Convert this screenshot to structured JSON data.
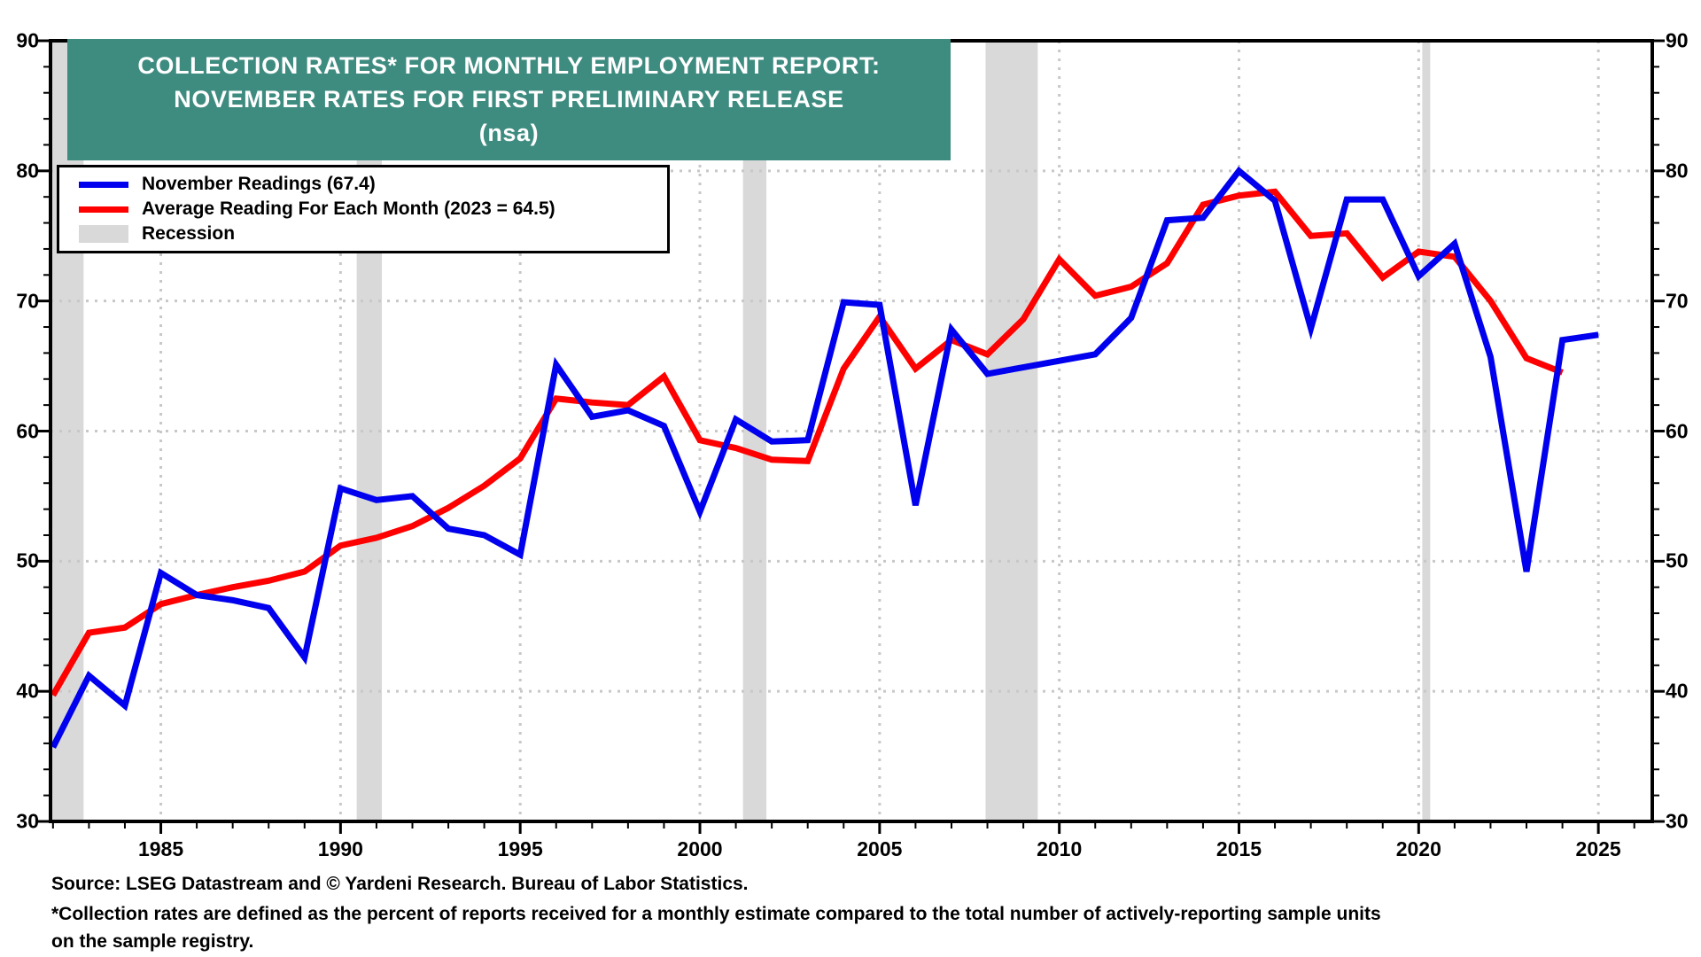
{
  "title": {
    "line1": "COLLECTION RATES* FOR MONTHLY EMPLOYMENT REPORT:",
    "line2": "NOVEMBER RATES FOR FIRST PRELIMINARY RELEASE",
    "line3": "(nsa)"
  },
  "legend": {
    "items": [
      {
        "label": "November Readings (67.4)",
        "swatch": "line",
        "color": "#0000EE"
      },
      {
        "label": "Average Reading For Each Month (2023 = 64.5)",
        "swatch": "line",
        "color": "#FF0000"
      },
      {
        "label": "Recession",
        "swatch": "box",
        "color": "#D9D9D9"
      }
    ]
  },
  "footer": {
    "source": "Source: LSEG Datastream and © Yardeni Research. Bureau of Labor Statistics.",
    "note1": "*Collection rates are defined as the percent of reports received for a monthly estimate compared to the total number of actively-reporting sample units",
    "note2": " on the sample registry."
  },
  "colors": {
    "header_bg": "#3E8B80",
    "header_text": "#FFFFFF",
    "blue_series": "#0000EE",
    "red_series": "#FF0000",
    "recession": "#D9D9D9",
    "gridline": "#C8C8C8",
    "axis": "#000000",
    "background": "#FFFFFF"
  },
  "chart_data": {
    "type": "line",
    "title": "COLLECTION RATES* FOR MONTHLY EMPLOYMENT REPORT: NOVEMBER RATES FOR FIRST PRELIMINARY RELEASE (nsa)",
    "xlabel": "",
    "ylabel": "",
    "x_range": [
      1981.93,
      2026.5
    ],
    "y_range": [
      30,
      90
    ],
    "y_ticks": [
      30,
      40,
      50,
      60,
      70,
      80,
      90
    ],
    "x_ticks": [
      1985,
      1990,
      1995,
      2000,
      2005,
      2010,
      2015,
      2020,
      2025
    ],
    "minor_y_step": 2,
    "minor_x_step": 1,
    "grid": true,
    "legend_position": "top-left",
    "dual_y_axis": true,
    "series": [
      {
        "name": "November Readings (67.4)",
        "color": "#0000EE",
        "start_year": 1982,
        "values": [
          35.7,
          41.2,
          38.9,
          49.1,
          47.4,
          47.0,
          46.4,
          42.6,
          55.6,
          54.7,
          55.0,
          52.5,
          52.0,
          50.5,
          65.1,
          61.1,
          61.6,
          60.4,
          53.8,
          60.9,
          59.2,
          59.3,
          69.9,
          69.7,
          54.3,
          67.8,
          64.4,
          64.9,
          65.4,
          65.9,
          68.7,
          76.2,
          76.4,
          80.0,
          77.7,
          67.9,
          77.8,
          77.8,
          71.9,
          74.4,
          65.7,
          49.2,
          67.0,
          67.4
        ]
      },
      {
        "name": "Average Reading For Each Month (2023 = 64.5)",
        "color": "#FF0000",
        "start_year": 1982,
        "values": [
          39.7,
          44.5,
          44.9,
          46.7,
          47.4,
          48.0,
          48.5,
          49.2,
          51.2,
          51.8,
          52.7,
          54.1,
          55.8,
          57.9,
          62.5,
          62.2,
          62.0,
          64.2,
          59.3,
          58.7,
          57.8,
          57.7,
          64.8,
          68.8,
          64.8,
          67.0,
          65.9,
          68.6,
          73.2,
          70.4,
          71.1,
          72.9,
          77.4,
          78.1,
          78.4,
          75.0,
          75.2,
          71.8,
          73.8,
          73.4,
          70.0,
          65.6,
          64.5
        ]
      }
    ],
    "recession_bands": [
      [
        1981.93,
        1982.85
      ],
      [
        1990.45,
        1991.15
      ],
      [
        2001.2,
        2001.85
      ],
      [
        2007.95,
        2009.4
      ],
      [
        2020.1,
        2020.32
      ]
    ]
  }
}
